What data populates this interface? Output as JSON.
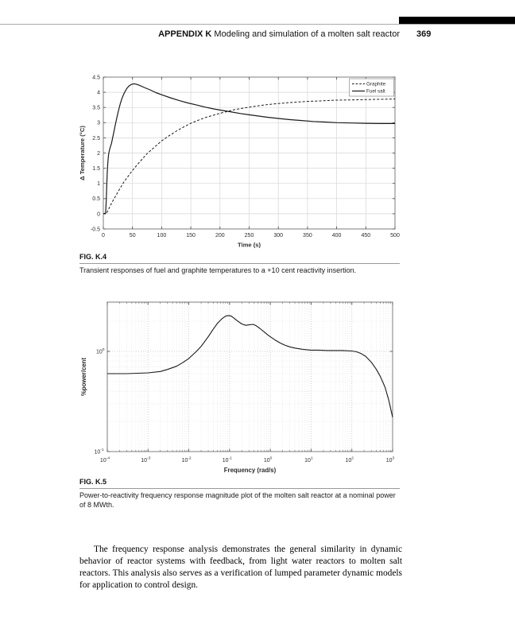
{
  "page": {
    "header_label": "APPENDIX K",
    "header_title": "Modeling and simulation of a molten salt reactor",
    "page_number": "369"
  },
  "figures": [
    {
      "label": "FIG. K.4",
      "caption": "Transient responses of fuel and graphite temperatures to a +10 cent reactivity insertion."
    },
    {
      "label": "FIG. K.5",
      "caption": "Power-to-reactivity frequency response magnitude plot of the molten salt reactor at a nominal power of 8 MWth."
    }
  ],
  "body_text": "The frequency response analysis demonstrates the general similarity in dynamic behavior of reactor systems with feedback, from light water reactors to molten salt reactors. This analysis also serves as a verification of lumped parameter dynamic models for application to control design.",
  "colors": {
    "curve": "#1a1a1a",
    "frame": "#7d7d7d",
    "tick": "#555555",
    "grid_major": "#d6d6d6",
    "grid_minor": "#e3e3e3",
    "label": "#2b2b2b",
    "black_bar": "#000000",
    "rule": "#ababab"
  },
  "chart_data": [
    {
      "type": "line",
      "title": "",
      "xlabel": "Time (s)",
      "ylabel": "Δ Temperature (°C)",
      "xlim": [
        0,
        500
      ],
      "ylim": [
        -0.5,
        4.5
      ],
      "xticks": [
        0,
        50,
        100,
        150,
        200,
        250,
        300,
        350,
        400,
        450,
        500
      ],
      "yticks": [
        -0.5,
        0,
        0.5,
        1,
        1.5,
        2,
        2.5,
        3,
        3.5,
        4,
        4.5
      ],
      "grid": true,
      "legend": {
        "position": "top-right",
        "entries": [
          {
            "label": "Graphite",
            "style": "dashed"
          },
          {
            "label": "Fuel salt",
            "style": "solid"
          }
        ]
      },
      "series": [
        {
          "name": "Graphite",
          "style": "dashed",
          "points": [
            [
              0,
              0
            ],
            [
              5,
              0
            ],
            [
              15,
              0.38
            ],
            [
              25,
              0.72
            ],
            [
              35,
              1.04
            ],
            [
              50,
              1.43
            ],
            [
              62,
              1.7
            ],
            [
              75,
              1.98
            ],
            [
              88,
              2.2
            ],
            [
              100,
              2.4
            ],
            [
              112,
              2.56
            ],
            [
              125,
              2.72
            ],
            [
              138,
              2.86
            ],
            [
              150,
              2.98
            ],
            [
              163,
              3.08
            ],
            [
              175,
              3.17
            ],
            [
              188,
              3.24
            ],
            [
              200,
              3.31
            ],
            [
              213,
              3.37
            ],
            [
              225,
              3.43
            ],
            [
              250,
              3.51
            ],
            [
              275,
              3.58
            ],
            [
              300,
              3.63
            ],
            [
              325,
              3.67
            ],
            [
              350,
              3.7
            ],
            [
              375,
              3.72
            ],
            [
              400,
              3.74
            ],
            [
              425,
              3.75
            ],
            [
              450,
              3.76
            ],
            [
              475,
              3.77
            ],
            [
              500,
              3.78
            ]
          ]
        },
        {
          "name": "Fuel salt",
          "style": "solid",
          "points": [
            [
              0,
              0
            ],
            [
              4,
              0.02
            ],
            [
              5,
              0.45
            ],
            [
              6,
              1.0
            ],
            [
              7,
              1.45
            ],
            [
              8,
              1.75
            ],
            [
              9,
              1.95
            ],
            [
              10,
              2.05
            ],
            [
              12,
              2.2
            ],
            [
              14,
              2.32
            ],
            [
              16,
              2.5
            ],
            [
              18,
              2.68
            ],
            [
              20,
              2.88
            ],
            [
              23,
              3.15
            ],
            [
              26,
              3.4
            ],
            [
              29,
              3.62
            ],
            [
              32,
              3.8
            ],
            [
              36,
              3.98
            ],
            [
              40,
              4.12
            ],
            [
              44,
              4.21
            ],
            [
              48,
              4.26
            ],
            [
              52,
              4.28
            ],
            [
              56,
              4.27
            ],
            [
              62,
              4.23
            ],
            [
              70,
              4.16
            ],
            [
              80,
              4.08
            ],
            [
              90,
              3.99
            ],
            [
              100,
              3.92
            ],
            [
              115,
              3.82
            ],
            [
              130,
              3.73
            ],
            [
              145,
              3.65
            ],
            [
              160,
              3.58
            ],
            [
              175,
              3.51
            ],
            [
              190,
              3.45
            ],
            [
              205,
              3.4
            ],
            [
              220,
              3.35
            ],
            [
              235,
              3.3
            ],
            [
              250,
              3.26
            ],
            [
              265,
              3.22
            ],
            [
              280,
              3.18
            ],
            [
              300,
              3.14
            ],
            [
              320,
              3.1
            ],
            [
              340,
              3.07
            ],
            [
              360,
              3.04
            ],
            [
              380,
              3.02
            ],
            [
              400,
              3.0
            ],
            [
              425,
              2.99
            ],
            [
              450,
              2.98
            ],
            [
              475,
              2.97
            ],
            [
              500,
              2.97
            ]
          ]
        }
      ]
    },
    {
      "type": "line",
      "title": "",
      "xlabel": "Frequency (rad/s)",
      "ylabel": "%power/cent",
      "xscale": "log",
      "yscale": "log",
      "x_exponents": [
        -4,
        -3,
        -2,
        -1,
        0,
        1,
        2,
        3
      ],
      "y_exponents": [
        -1,
        0
      ],
      "ylim_log": [
        -1,
        0.49
      ],
      "grid": true,
      "minor_grid": true,
      "series": [
        {
          "name": "magnitude",
          "style": "solid",
          "points": [
            [
              0.0001,
              0.6
            ],
            [
              0.0003,
              0.6
            ],
            [
              0.001,
              0.61
            ],
            [
              0.002,
              0.63
            ],
            [
              0.003,
              0.66
            ],
            [
              0.005,
              0.71
            ],
            [
              0.007,
              0.77
            ],
            [
              0.01,
              0.85
            ],
            [
              0.015,
              0.99
            ],
            [
              0.02,
              1.12
            ],
            [
              0.03,
              1.4
            ],
            [
              0.04,
              1.67
            ],
            [
              0.05,
              1.9
            ],
            [
              0.065,
              2.12
            ],
            [
              0.08,
              2.25
            ],
            [
              0.095,
              2.28
            ],
            [
              0.11,
              2.25
            ],
            [
              0.13,
              2.14
            ],
            [
              0.16,
              2.0
            ],
            [
              0.2,
              1.88
            ],
            [
              0.25,
              1.82
            ],
            [
              0.3,
              1.84
            ],
            [
              0.38,
              1.86
            ],
            [
              0.45,
              1.8
            ],
            [
              0.55,
              1.7
            ],
            [
              0.7,
              1.57
            ],
            [
              0.85,
              1.47
            ],
            [
              1,
              1.4
            ],
            [
              1.3,
              1.3
            ],
            [
              1.7,
              1.22
            ],
            [
              2.2,
              1.16
            ],
            [
              3,
              1.11
            ],
            [
              4,
              1.08
            ],
            [
              6,
              1.05
            ],
            [
              10,
              1.03
            ],
            [
              15,
              1.03
            ],
            [
              25,
              1.02
            ],
            [
              40,
              1.02
            ],
            [
              60,
              1.02
            ],
            [
              100,
              1.01
            ],
            [
              130,
              0.99
            ],
            [
              170,
              0.95
            ],
            [
              220,
              0.89
            ],
            [
              300,
              0.78
            ],
            [
              400,
              0.66
            ],
            [
              500,
              0.56
            ],
            [
              650,
              0.44
            ],
            [
              800,
              0.33
            ],
            [
              1000,
              0.22
            ]
          ]
        }
      ]
    }
  ]
}
